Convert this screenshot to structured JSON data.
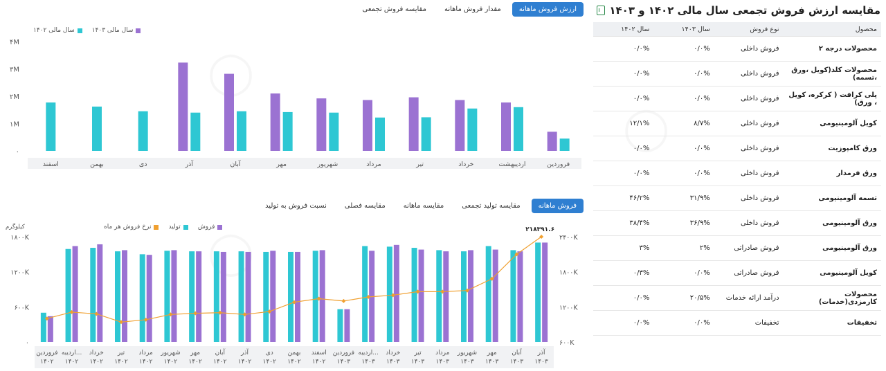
{
  "top_tabs": [
    "ارزش فروش ماهانه",
    "مقدار فروش ماهانه",
    "مقایسه فروش تجمعی"
  ],
  "bottom_tabs": [
    "فروش ماهانه",
    "مقایسه تولید تجمعی",
    "مقایسه ماهانه",
    "مقایسه فصلی",
    "نسبت فروش به تولید"
  ],
  "table": {
    "title": "مقایسه ارزش فروش تجمعی سال مالی ۱۴۰۲ و ۱۴۰۳",
    "headers": [
      "محصول",
      "نوع فروش",
      "سال ۱۴۰۳",
      "سال ۱۴۰۲"
    ],
    "rows": [
      [
        "محصولات درجه ۲",
        "فروش داخلی",
        "۰/۰%",
        "۰/۰%"
      ],
      [
        "محصولات کلد(کویل ،ورق ،تسمه)",
        "فروش داخلی",
        "۰/۰%",
        "۰/۰%"
      ],
      [
        "پلی کرافت ( کرکره، کویل ، ورق)",
        "فروش داخلی",
        "۰/۰%",
        "۰/۰%"
      ],
      [
        "کویل آلومینیومی",
        "فروش داخلی",
        "۸/۷%",
        "۱۲/۱%"
      ],
      [
        "ورق کامپوزیت",
        "فروش داخلی",
        "۰/۰%",
        "۰/۰%"
      ],
      [
        "ورق فرمدار",
        "فروش داخلی",
        "۰/۰%",
        "۰/۰%"
      ],
      [
        "تسمه آلومینیومی",
        "فروش داخلی",
        "۳۱/۹%",
        "۴۶/۲%"
      ],
      [
        "ورق آلومینیومی",
        "فروش داخلی",
        "۳۶/۹%",
        "۳۸/۴%"
      ],
      [
        "ورق آلومینیومی",
        "فروش صادراتی",
        "۲%",
        "۳%"
      ],
      [
        "کویل آلومینیومی",
        "فروش صادراتی",
        "۰/۰%",
        "۰/۳%"
      ],
      [
        "محصولات کارمزدی(خدمات)",
        "درآمد ارائه خدمات",
        "۲۰/۵%",
        "۰/۰%"
      ],
      [
        "تخفیفات",
        "تخفیفات",
        "۰/۰%",
        "۰/۰%"
      ]
    ]
  },
  "colors": {
    "teal": "#2ec7d3",
    "purple": "#9b72d2",
    "orange": "#f0a030",
    "tab_active": "#2f7fd1"
  },
  "chart_data": [
    {
      "type": "bar",
      "legend": [
        "سال مالی ۱۴۰۳",
        "سال مالی ۱۴۰۲"
      ],
      "categories": [
        "فروردین",
        "اردیبهشت",
        "خرداد",
        "تیر",
        "مرداد",
        "شهریور",
        "مهر",
        "آبان",
        "آذر",
        "دی",
        "بهمن",
        "اسفند"
      ],
      "series": [
        {
          "name": "سال مالی ۱۴۰۲",
          "color": "#2ec7d3",
          "values": [
            0.45,
            1.6,
            1.55,
            1.23,
            1.22,
            1.4,
            1.42,
            1.45,
            1.4,
            1.45,
            1.62,
            1.77
          ]
        },
        {
          "name": "سال مالی ۱۴۰۳",
          "color": "#9b72d2",
          "values": [
            0.7,
            1.77,
            1.86,
            1.96,
            1.86,
            1.92,
            2.1,
            2.82,
            3.23,
            null,
            null,
            null
          ]
        }
      ],
      "y_ticks": [
        "۴M",
        "۳M",
        "۲M",
        "۱M",
        "۰"
      ],
      "ylim": [
        0,
        4
      ],
      "grid": false
    },
    {
      "type": "bar",
      "legend": [
        "فروش",
        "تولید",
        "نرخ فروش هر ماه"
      ],
      "left_axis_label": "کیلوگرم",
      "left_ticks": [
        "۱۸۰۰K",
        "۱۲۰۰K",
        "۶۰۰K",
        "۰"
      ],
      "right_ticks": [
        "۲۴۰۰K",
        "۱۸۰۰K",
        "۱۲۰۰K",
        "۶۰۰K"
      ],
      "ylim_left": [
        0,
        1800
      ],
      "ylim_right": [
        600,
        2400
      ],
      "annotation": "۲۱۸۳۹۱.۶",
      "categories": [
        [
          "فروردین",
          "۱۴۰۲"
        ],
        [
          "اردیبه...",
          "۱۴۰۲"
        ],
        [
          "خرداد",
          "۱۴۰۲"
        ],
        [
          "تیر",
          "۱۴۰۲"
        ],
        [
          "مرداد",
          "۱۴۰۲"
        ],
        [
          "شهریور",
          "۱۴۰۲"
        ],
        [
          "مهر",
          "۱۴۰۲"
        ],
        [
          "آبان",
          "۱۴۰۲"
        ],
        [
          "آذر",
          "۱۴۰۲"
        ],
        [
          "دی",
          "۱۴۰۲"
        ],
        [
          "بهمن",
          "۱۴۰۲"
        ],
        [
          "اسفند",
          "۱۴۰۲"
        ],
        [
          "فروردین",
          "۱۴۰۳"
        ],
        [
          "اردیبه...",
          "۱۴۰۳"
        ],
        [
          "خرداد",
          "۱۴۰۳"
        ],
        [
          "تیر",
          "۱۴۰۳"
        ],
        [
          "مرداد",
          "۱۴۰۳"
        ],
        [
          "شهریور",
          "۱۴۰۳"
        ],
        [
          "مهر",
          "۱۴۰۳"
        ],
        [
          "آبان",
          "۱۴۰۳"
        ],
        [
          "آذر",
          "۱۴۰۳"
        ]
      ],
      "series": [
        {
          "name": "تولید",
          "color": "#2ec7d3",
          "values": [
            500,
            1590,
            1610,
            1550,
            1500,
            1560,
            1550,
            1550,
            1550,
            1540,
            1540,
            1560,
            560,
            1640,
            1630,
            1610,
            1570,
            1550,
            1640,
            1570,
            1700
          ]
        },
        {
          "name": "فروش",
          "color": "#9b72d2",
          "values": [
            440,
            1640,
            1670,
            1570,
            1490,
            1570,
            1550,
            1540,
            1540,
            1560,
            1540,
            1570,
            560,
            1560,
            1660,
            1580,
            1550,
            1570,
            1580,
            1550,
            1700
          ]
        },
        {
          "name": "نرخ فروش هر ماه",
          "color": "#f0a030",
          "values": [
            1000,
            1110,
            1080,
            940,
            980,
            1070,
            1090,
            1100,
            1070,
            1120,
            1280,
            1340,
            1300,
            1370,
            1400,
            1460,
            1460,
            1480,
            1680,
            2100,
            2400
          ]
        }
      ],
      "grid": false
    }
  ]
}
